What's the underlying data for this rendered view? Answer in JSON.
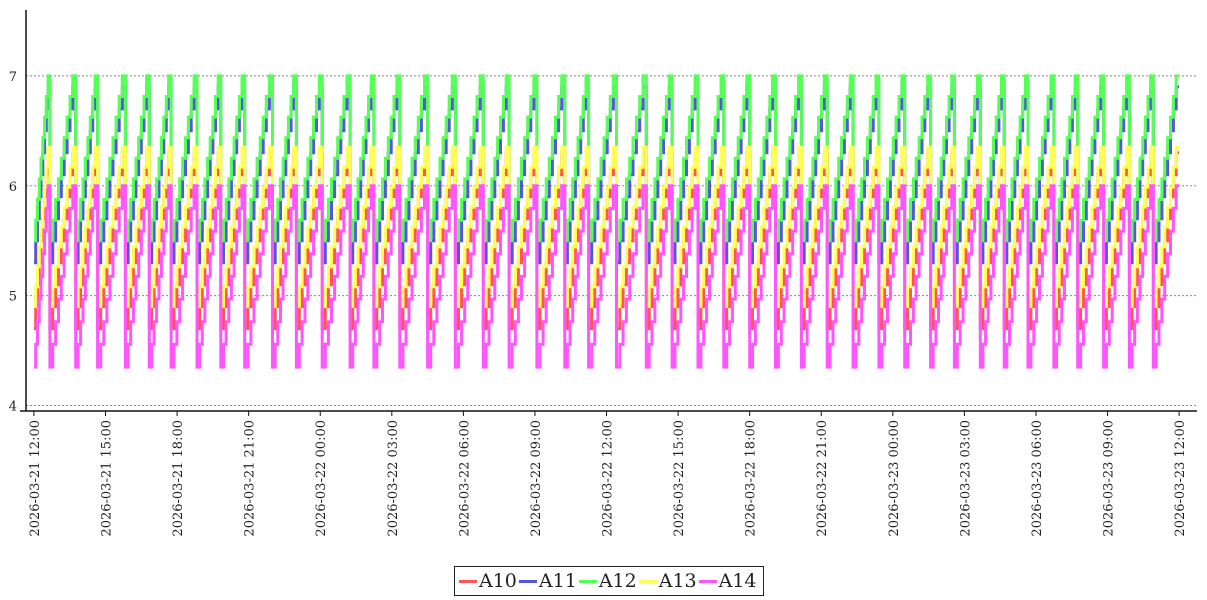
{
  "chart_data": {
    "type": "line",
    "title": "",
    "xlabel": "",
    "ylabel": "",
    "ylim": [
      3.95,
      7.6
    ],
    "xlim": [
      "2026-03-21 11:40",
      "2026-03-23 12:45"
    ],
    "yticks": [
      4,
      5,
      6,
      7
    ],
    "xticks": [
      "2026-03-21 12:00",
      "2026-03-21 15:00",
      "2026-03-21 18:00",
      "2026-03-21 21:00",
      "2026-03-22 00:00",
      "2026-03-22 03:00",
      "2026-03-22 06:00",
      "2026-03-22 09:00",
      "2026-03-22 12:00",
      "2026-03-22 15:00",
      "2026-03-22 18:00",
      "2026-03-22 21:00",
      "2026-03-23 00:00",
      "2026-03-23 03:00",
      "2026-03-23 06:00",
      "2026-03-23 09:00",
      "2026-03-23 12:00"
    ],
    "grid": "horizontal dashed",
    "legend_position": "bottom-center",
    "cycle_start_times": [
      "2026-03-21 12:00",
      "2026-03-21 12:40",
      "2026-03-21 13:45",
      "2026-03-21 14:40",
      "2026-03-21 15:50",
      "2026-03-21 16:50",
      "2026-03-21 17:45",
      "2026-03-21 18:50",
      "2026-03-21 19:50",
      "2026-03-21 20:50",
      "2026-03-21 22:00",
      "2026-03-21 23:00",
      "2026-03-22 00:05",
      "2026-03-22 01:15",
      "2026-03-22 02:15",
      "2026-03-22 03:20",
      "2026-03-22 04:30",
      "2026-03-22 05:40",
      "2026-03-22 06:50",
      "2026-03-22 07:55",
      "2026-03-22 09:05",
      "2026-03-22 10:15",
      "2026-03-22 11:15",
      "2026-03-22 12:25",
      "2026-03-22 13:40",
      "2026-03-22 14:45",
      "2026-03-22 15:50",
      "2026-03-22 16:55",
      "2026-03-22 18:00",
      "2026-03-22 19:05",
      "2026-03-22 20:10",
      "2026-03-22 21:15",
      "2026-03-22 22:20",
      "2026-03-22 23:25",
      "2026-03-23 00:30",
      "2026-03-23 01:35",
      "2026-03-23 02:35",
      "2026-03-23 03:40",
      "2026-03-23 04:40",
      "2026-03-23 05:40",
      "2026-03-23 06:45",
      "2026-03-23 07:45",
      "2026-03-23 08:50",
      "2026-03-23 09:55",
      "2026-03-23 10:55"
    ],
    "cycle_end_time": "2026-03-23 12:00",
    "series": [
      {
        "name": "A10",
        "color": "#ff5555",
        "low": 4.7,
        "high": 6.3
      },
      {
        "name": "A11",
        "color": "#5555dd",
        "low": 5.3,
        "high": 6.9
      },
      {
        "name": "A12",
        "color": "#55ff55",
        "low": 5.5,
        "high": 7.0
      },
      {
        "name": "A13",
        "color": "#ffff55",
        "low": 4.9,
        "high": 6.35
      },
      {
        "name": "A14",
        "color": "#ff55ff",
        "low": 4.35,
        "high": 6.0
      }
    ]
  },
  "legend": {
    "items": [
      {
        "label": "A10",
        "color": "#ff5555"
      },
      {
        "label": "A11",
        "color": "#5555dd"
      },
      {
        "label": "A12",
        "color": "#55ff55"
      },
      {
        "label": "A13",
        "color": "#ffff55"
      },
      {
        "label": "A14",
        "color": "#ff55ff"
      }
    ]
  }
}
